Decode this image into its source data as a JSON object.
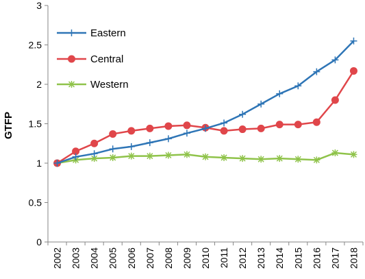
{
  "chart_data": {
    "type": "line",
    "categories": [
      "2002",
      "2003",
      "2004",
      "2005",
      "2006",
      "2007",
      "2008",
      "2009",
      "2010",
      "2011",
      "2012",
      "2013",
      "2014",
      "2015",
      "2016",
      "2017",
      "2018"
    ],
    "series": [
      {
        "name": "Eastern",
        "color": "#2e75b6",
        "marker": "plus",
        "values": [
          1.0,
          1.08,
          1.12,
          1.18,
          1.21,
          1.26,
          1.31,
          1.38,
          1.44,
          1.51,
          1.62,
          1.75,
          1.88,
          1.98,
          2.16,
          2.31,
          2.55
        ]
      },
      {
        "name": "Central",
        "color": "#e0464a",
        "marker": "circle",
        "values": [
          1.0,
          1.15,
          1.25,
          1.37,
          1.41,
          1.44,
          1.47,
          1.48,
          1.45,
          1.41,
          1.43,
          1.44,
          1.49,
          1.49,
          1.52,
          1.8,
          2.17
        ]
      },
      {
        "name": "Western",
        "color": "#8fc34a",
        "marker": "star",
        "values": [
          1.0,
          1.04,
          1.06,
          1.07,
          1.09,
          1.09,
          1.1,
          1.11,
          1.08,
          1.07,
          1.06,
          1.05,
          1.06,
          1.05,
          1.04,
          1.13,
          1.11
        ]
      }
    ],
    "ylabel": "GTFP",
    "xlabel": "",
    "ylim": [
      0,
      3
    ],
    "yticks": [
      "0",
      "0.5",
      "1",
      "1.5",
      "2",
      "2.5",
      "3"
    ],
    "grid": false,
    "legend": "top-left"
  }
}
